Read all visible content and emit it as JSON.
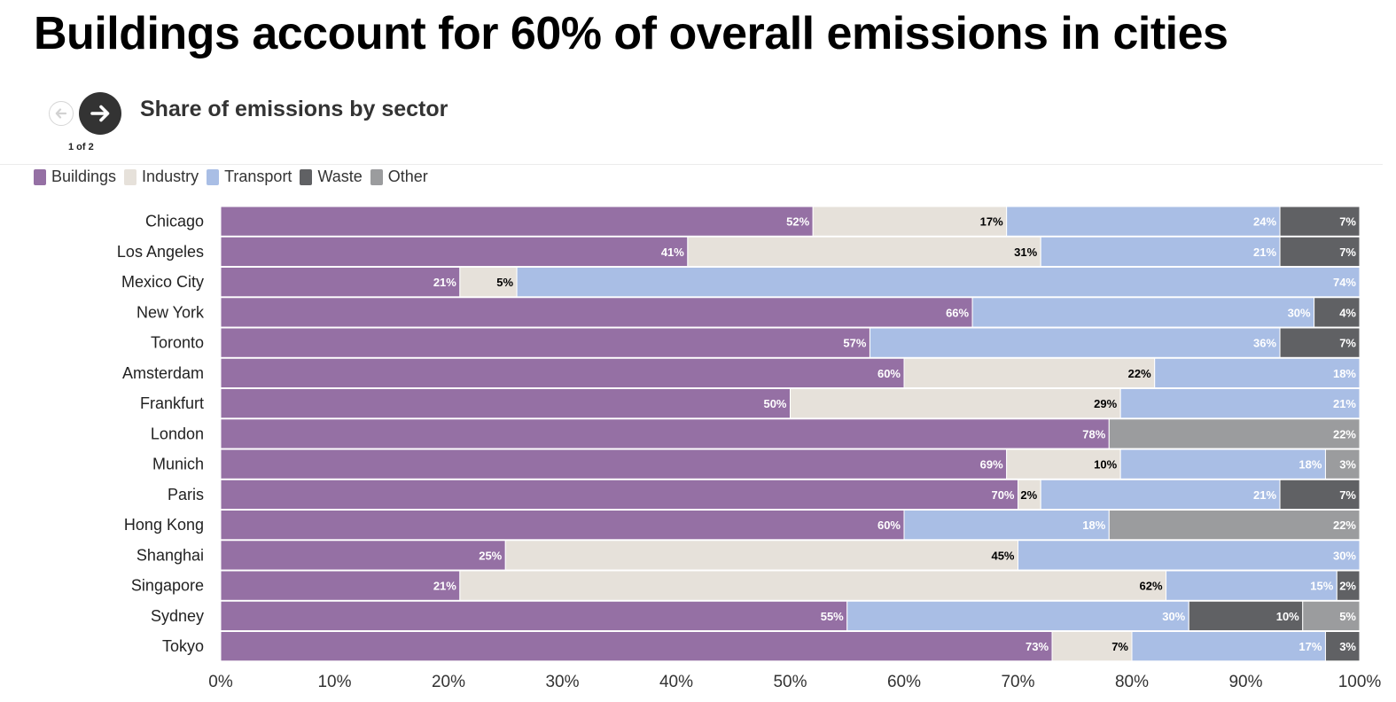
{
  "title": "Buildings account for 60% of overall emissions in cities",
  "subtitle": "Share of emissions by sector",
  "nav": {
    "counter": "1 of 2",
    "prev_icon": "arrow-left-icon",
    "next_icon": "arrow-right-icon"
  },
  "colors": {
    "Buildings": "#9570a4",
    "Industry": "#e6e1da",
    "Transport": "#a9bee5",
    "Waste": "#606164",
    "Other": "#9b9c9e"
  },
  "legend": [
    "Buildings",
    "Industry",
    "Transport",
    "Waste",
    "Other"
  ],
  "chart_data": {
    "type": "bar",
    "orientation": "horizontal",
    "stacked": true,
    "categories": [
      "Chicago",
      "Los Angeles",
      "Mexico City",
      "New York",
      "Toronto",
      "Amsterdam",
      "Frankfurt",
      "London",
      "Munich",
      "Paris",
      "Hong Kong",
      "Shanghai",
      "Singapore",
      "Sydney",
      "Tokyo"
    ],
    "series": [
      {
        "name": "Buildings",
        "values": [
          52,
          41,
          21,
          66,
          57,
          60,
          50,
          78,
          69,
          70,
          60,
          25,
          21,
          55,
          73
        ]
      },
      {
        "name": "Industry",
        "values": [
          17,
          31,
          5,
          0,
          0,
          22,
          29,
          0,
          10,
          2,
          0,
          45,
          62,
          0,
          7
        ]
      },
      {
        "name": "Transport",
        "values": [
          24,
          21,
          74,
          30,
          36,
          18,
          21,
          0,
          18,
          21,
          18,
          30,
          15,
          30,
          17
        ]
      },
      {
        "name": "Waste",
        "values": [
          7,
          7,
          0,
          4,
          7,
          0,
          0,
          0,
          0,
          7,
          0,
          0,
          2,
          10,
          3
        ]
      },
      {
        "name": "Other",
        "values": [
          0,
          0,
          0,
          0,
          0,
          0,
          0,
          22,
          3,
          0,
          22,
          0,
          0,
          5,
          0
        ]
      }
    ],
    "label_colors": {
      "Buildings": "#ffffff",
      "Industry": "#000000",
      "Transport": "#ffffff",
      "Waste": "#ffffff",
      "Other": "#ffffff"
    },
    "x_ticks": [
      "0%",
      "10%",
      "20%",
      "30%",
      "40%",
      "50%",
      "60%",
      "70%",
      "80%",
      "90%",
      "100%"
    ],
    "xlim": [
      0,
      100
    ],
    "value_suffix": "%",
    "grid": false,
    "legend_position": "top-left"
  }
}
